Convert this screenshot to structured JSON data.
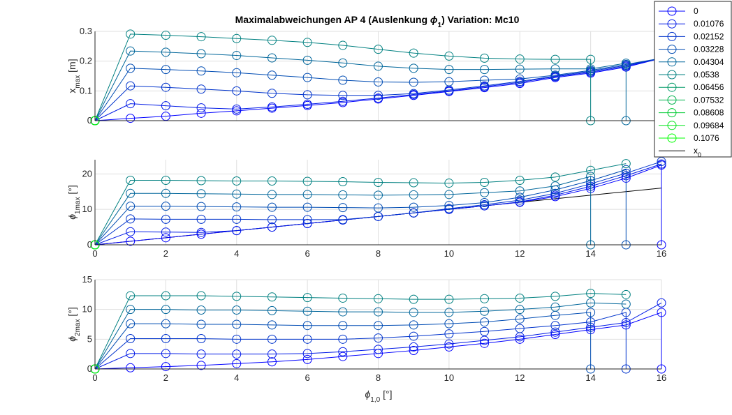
{
  "figure": {
    "title_main": "Maximalabweichungen AP 4 (Auslenkung ",
    "title_sym": "ϕ",
    "title_sub": "1",
    "title_tail": ")  Variation: Mc10",
    "xlabel_sym": "ϕ",
    "xlabel_sub": "1,0",
    "xlabel_unit": " [°]"
  },
  "legend": {
    "position": "top-right, outside",
    "entries": [
      "0",
      "0.01076",
      "0.02152",
      "0.03228",
      "0.04304",
      "0.0538",
      "0.06456",
      "0.07532",
      "0.08608",
      "0.09684",
      "0.1076",
      "x0"
    ],
    "ref_label_main": "x",
    "ref_label_sub": "0"
  },
  "colors": {
    "series": [
      "#0000ff",
      "#0019e6",
      "#0033cc",
      "#004cb3",
      "#00669a",
      "#008080",
      "#009966",
      "#00b34d",
      "#00cc33",
      "#00e61a",
      "#00ff00"
    ],
    "reference": "#000000",
    "grid": "#dfdfdf",
    "axis": "#262626"
  },
  "chart_data": [
    {
      "type": "line",
      "panel": "top",
      "ylabel_main": "x",
      "ylabel_sub": "max",
      "ylabel_unit": " [m]",
      "xlim": [
        0,
        16
      ],
      "ylim": [
        0,
        0.3
      ],
      "xticks": [
        0,
        2,
        4,
        6,
        8,
        10,
        12,
        14,
        16
      ],
      "yticks": [
        0,
        0.1,
        0.2,
        0.3
      ],
      "ytick_labels": [
        "0",
        "0.1",
        "0.2",
        "0.3"
      ],
      "grid": true,
      "reference": {
        "name": "x0",
        "x": [
          0,
          16
        ],
        "y": [
          0,
          0
        ]
      },
      "series": [
        {
          "x": [
            0,
            1,
            2,
            3,
            4,
            5,
            6,
            7,
            8,
            9,
            10,
            11,
            12,
            13,
            14,
            15,
            16
          ],
          "y": [
            0,
            0.008,
            0.015,
            0.025,
            0.033,
            0.042,
            0.051,
            0.061,
            0.073,
            0.085,
            0.098,
            0.111,
            0.125,
            0.145,
            0.16,
            0.18,
            0.21
          ]
        },
        {
          "x": [
            0,
            1,
            2,
            3,
            4,
            5,
            6,
            7,
            8,
            9,
            10,
            11,
            12,
            13,
            14,
            15,
            16
          ],
          "y": [
            0,
            0.057,
            0.05,
            0.043,
            0.039,
            0.046,
            0.055,
            0.065,
            0.076,
            0.088,
            0.1,
            0.114,
            0.129,
            0.148,
            0.163,
            0.183,
            0.21
          ]
        },
        {
          "x": [
            0,
            1,
            2,
            3,
            4,
            5,
            6,
            7,
            8,
            9,
            10,
            11,
            12,
            13,
            14,
            15,
            16
          ],
          "y": [
            0,
            0.117,
            0.112,
            0.106,
            0.1,
            0.092,
            0.087,
            0.085,
            0.085,
            0.091,
            0.103,
            0.117,
            0.132,
            0.15,
            0.166,
            0.186,
            0.21
          ]
        },
        {
          "x": [
            0,
            1,
            2,
            3,
            4,
            5,
            6,
            7,
            8,
            9,
            10,
            11,
            12,
            13,
            14,
            15,
            16
          ],
          "y": [
            0,
            0.176,
            0.172,
            0.167,
            0.161,
            0.153,
            0.145,
            0.136,
            0.13,
            0.129,
            0.131,
            0.136,
            0.14,
            0.153,
            0.169,
            0.189,
            0.21
          ]
        },
        {
          "x": [
            0,
            1,
            2,
            3,
            4,
            5,
            6,
            7,
            8,
            9,
            10,
            11,
            12,
            13,
            14,
            15,
            15
          ],
          "y": [
            0,
            0.234,
            0.23,
            0.225,
            0.219,
            0.211,
            0.203,
            0.194,
            0.183,
            0.176,
            0.172,
            0.172,
            0.173,
            0.174,
            0.174,
            0.193,
            0
          ]
        },
        {
          "x": [
            0,
            1,
            2,
            3,
            4,
            5,
            6,
            7,
            8,
            9,
            10,
            11,
            12,
            13,
            14,
            14
          ],
          "y": [
            0,
            0.291,
            0.287,
            0.282,
            0.276,
            0.27,
            0.263,
            0.253,
            0.24,
            0.227,
            0.217,
            0.21,
            0.207,
            0.206,
            0.206,
            0
          ]
        }
      ]
    },
    {
      "type": "line",
      "panel": "middle",
      "ylabel_main": "ϕ",
      "ylabel_sub": "1max",
      "ylabel_unit": " [°]",
      "xlim": [
        0,
        16
      ],
      "ylim": [
        0,
        24
      ],
      "xticks": [
        0,
        2,
        4,
        6,
        8,
        10,
        12,
        14,
        16
      ],
      "xtick_labels": [
        "0",
        "2",
        "4",
        "6",
        "8",
        "10",
        "12",
        "14",
        "16"
      ],
      "yticks": [
        0,
        10,
        20
      ],
      "ytick_labels": [
        "0",
        "10",
        "20"
      ],
      "grid": true,
      "reference": {
        "name": "x0",
        "x": [
          0,
          16
        ],
        "y": [
          0,
          16
        ]
      },
      "series": [
        {
          "x": [
            0,
            1,
            2,
            3,
            4,
            5,
            6,
            7,
            8,
            9,
            10,
            11,
            12,
            13,
            14,
            15,
            16,
            16
          ],
          "y": [
            0,
            1.0,
            2.0,
            3.0,
            4.0,
            5.0,
            6.0,
            7.0,
            8.0,
            9.0,
            10.0,
            11.0,
            12.0,
            13.6,
            15.9,
            18.8,
            22.5,
            0
          ]
        },
        {
          "x": [
            0,
            1,
            2,
            3,
            4,
            5,
            6,
            7,
            8,
            9,
            10,
            11,
            12,
            13,
            14,
            15,
            16
          ],
          "y": [
            0,
            3.7,
            3.6,
            3.5,
            4.0,
            5.0,
            6.0,
            7.0,
            8.0,
            9.0,
            10.0,
            11.0,
            12.1,
            14.0,
            16.5,
            19.5,
            22.8
          ]
        },
        {
          "x": [
            0,
            1,
            2,
            3,
            4,
            5,
            6,
            7,
            8,
            9,
            10,
            11,
            12,
            13,
            14,
            15,
            16
          ],
          "y": [
            0,
            7.3,
            7.2,
            7.2,
            7.2,
            7.1,
            7.1,
            7.1,
            8.0,
            9.0,
            10.2,
            11.3,
            12.6,
            14.5,
            17.2,
            20.2,
            23.5
          ]
        },
        {
          "x": [
            0,
            1,
            2,
            3,
            4,
            5,
            6,
            7,
            8,
            9,
            10,
            11,
            12,
            13,
            14,
            15,
            15
          ],
          "y": [
            0,
            10.9,
            10.9,
            10.8,
            10.7,
            10.6,
            10.6,
            10.5,
            10.4,
            10.6,
            11.1,
            11.9,
            13.4,
            15.5,
            18.1,
            21.2,
            0
          ]
        },
        {
          "x": [
            0,
            1,
            2,
            3,
            4,
            5,
            6,
            7,
            8,
            9,
            10,
            11,
            12,
            13,
            14,
            14
          ],
          "y": [
            0,
            14.5,
            14.5,
            14.4,
            14.3,
            14.2,
            14.2,
            14.1,
            14.0,
            14.1,
            14.2,
            14.7,
            15.2,
            16.6,
            19.3,
            0
          ]
        },
        {
          "x": [
            0,
            1,
            2,
            3,
            4,
            5,
            6,
            7,
            8,
            9,
            10,
            11,
            12,
            13,
            14,
            15
          ],
          "y": [
            0,
            18.2,
            18.2,
            18.1,
            18.0,
            18.0,
            17.9,
            17.8,
            17.6,
            17.5,
            17.4,
            17.6,
            18.2,
            19.1,
            21.0,
            22.9
          ]
        }
      ]
    },
    {
      "type": "line",
      "panel": "bottom",
      "ylabel_main": "ϕ",
      "ylabel_sub": "2max",
      "ylabel_unit": " [°]",
      "xlim": [
        0,
        16
      ],
      "ylim": [
        0,
        15
      ],
      "xticks": [
        0,
        2,
        4,
        6,
        8,
        10,
        12,
        14,
        16
      ],
      "xtick_labels": [
        "0",
        "2",
        "4",
        "6",
        "8",
        "10",
        "12",
        "14",
        "16"
      ],
      "yticks": [
        0,
        5,
        10,
        15
      ],
      "ytick_labels": [
        "0",
        "5",
        "10",
        "15"
      ],
      "grid": true,
      "reference": {
        "name": "x0",
        "x": [
          0,
          16
        ],
        "y": [
          0,
          0
        ]
      },
      "series": [
        {
          "x": [
            0,
            1,
            2,
            3,
            4,
            5,
            6,
            7,
            8,
            9,
            10,
            11,
            12,
            13,
            14,
            15,
            16,
            16
          ],
          "y": [
            0,
            0.2,
            0.4,
            0.6,
            0.9,
            1.2,
            1.6,
            2.1,
            2.6,
            3.1,
            3.7,
            4.3,
            5.0,
            5.8,
            6.6,
            7.4,
            9.5,
            0
          ]
        },
        {
          "x": [
            0,
            1,
            2,
            3,
            4,
            5,
            6,
            7,
            8,
            9,
            10,
            11,
            12,
            13,
            14,
            15,
            16
          ],
          "y": [
            0,
            2.6,
            2.6,
            2.5,
            2.5,
            2.5,
            2.6,
            2.9,
            3.3,
            3.7,
            4.2,
            4.8,
            5.4,
            6.2,
            7.0,
            7.8,
            11.1
          ]
        },
        {
          "x": [
            0,
            1,
            2,
            3,
            4,
            5,
            6,
            7,
            8,
            9,
            10,
            11,
            12,
            13,
            14,
            15,
            15
          ],
          "y": [
            0,
            5.1,
            5.1,
            5.1,
            5.0,
            5.0,
            5.0,
            5.0,
            5.2,
            5.5,
            5.9,
            6.3,
            6.8,
            7.3,
            7.9,
            9.5,
            0
          ]
        },
        {
          "x": [
            0,
            1,
            2,
            3,
            4,
            5,
            6,
            7,
            8,
            9,
            10,
            11,
            12,
            13,
            14,
            14
          ],
          "y": [
            0,
            7.6,
            7.6,
            7.5,
            7.5,
            7.4,
            7.3,
            7.3,
            7.3,
            7.4,
            7.6,
            7.9,
            8.4,
            9.0,
            9.5,
            0
          ]
        },
        {
          "x": [
            0,
            1,
            2,
            3,
            4,
            5,
            6,
            7,
            8,
            9,
            10,
            11,
            12,
            13,
            14,
            15
          ],
          "y": [
            0,
            10.0,
            10.0,
            9.9,
            9.9,
            9.8,
            9.7,
            9.6,
            9.6,
            9.5,
            9.5,
            9.7,
            10.0,
            10.4,
            11.1,
            10.9
          ]
        },
        {
          "x": [
            0,
            1,
            2,
            3,
            4,
            5,
            6,
            7,
            8,
            9,
            10,
            11,
            12,
            13,
            14,
            15
          ],
          "y": [
            0,
            12.3,
            12.3,
            12.3,
            12.2,
            12.1,
            12.0,
            11.9,
            11.8,
            11.7,
            11.7,
            11.8,
            11.9,
            12.2,
            12.7,
            12.5
          ]
        }
      ]
    }
  ]
}
